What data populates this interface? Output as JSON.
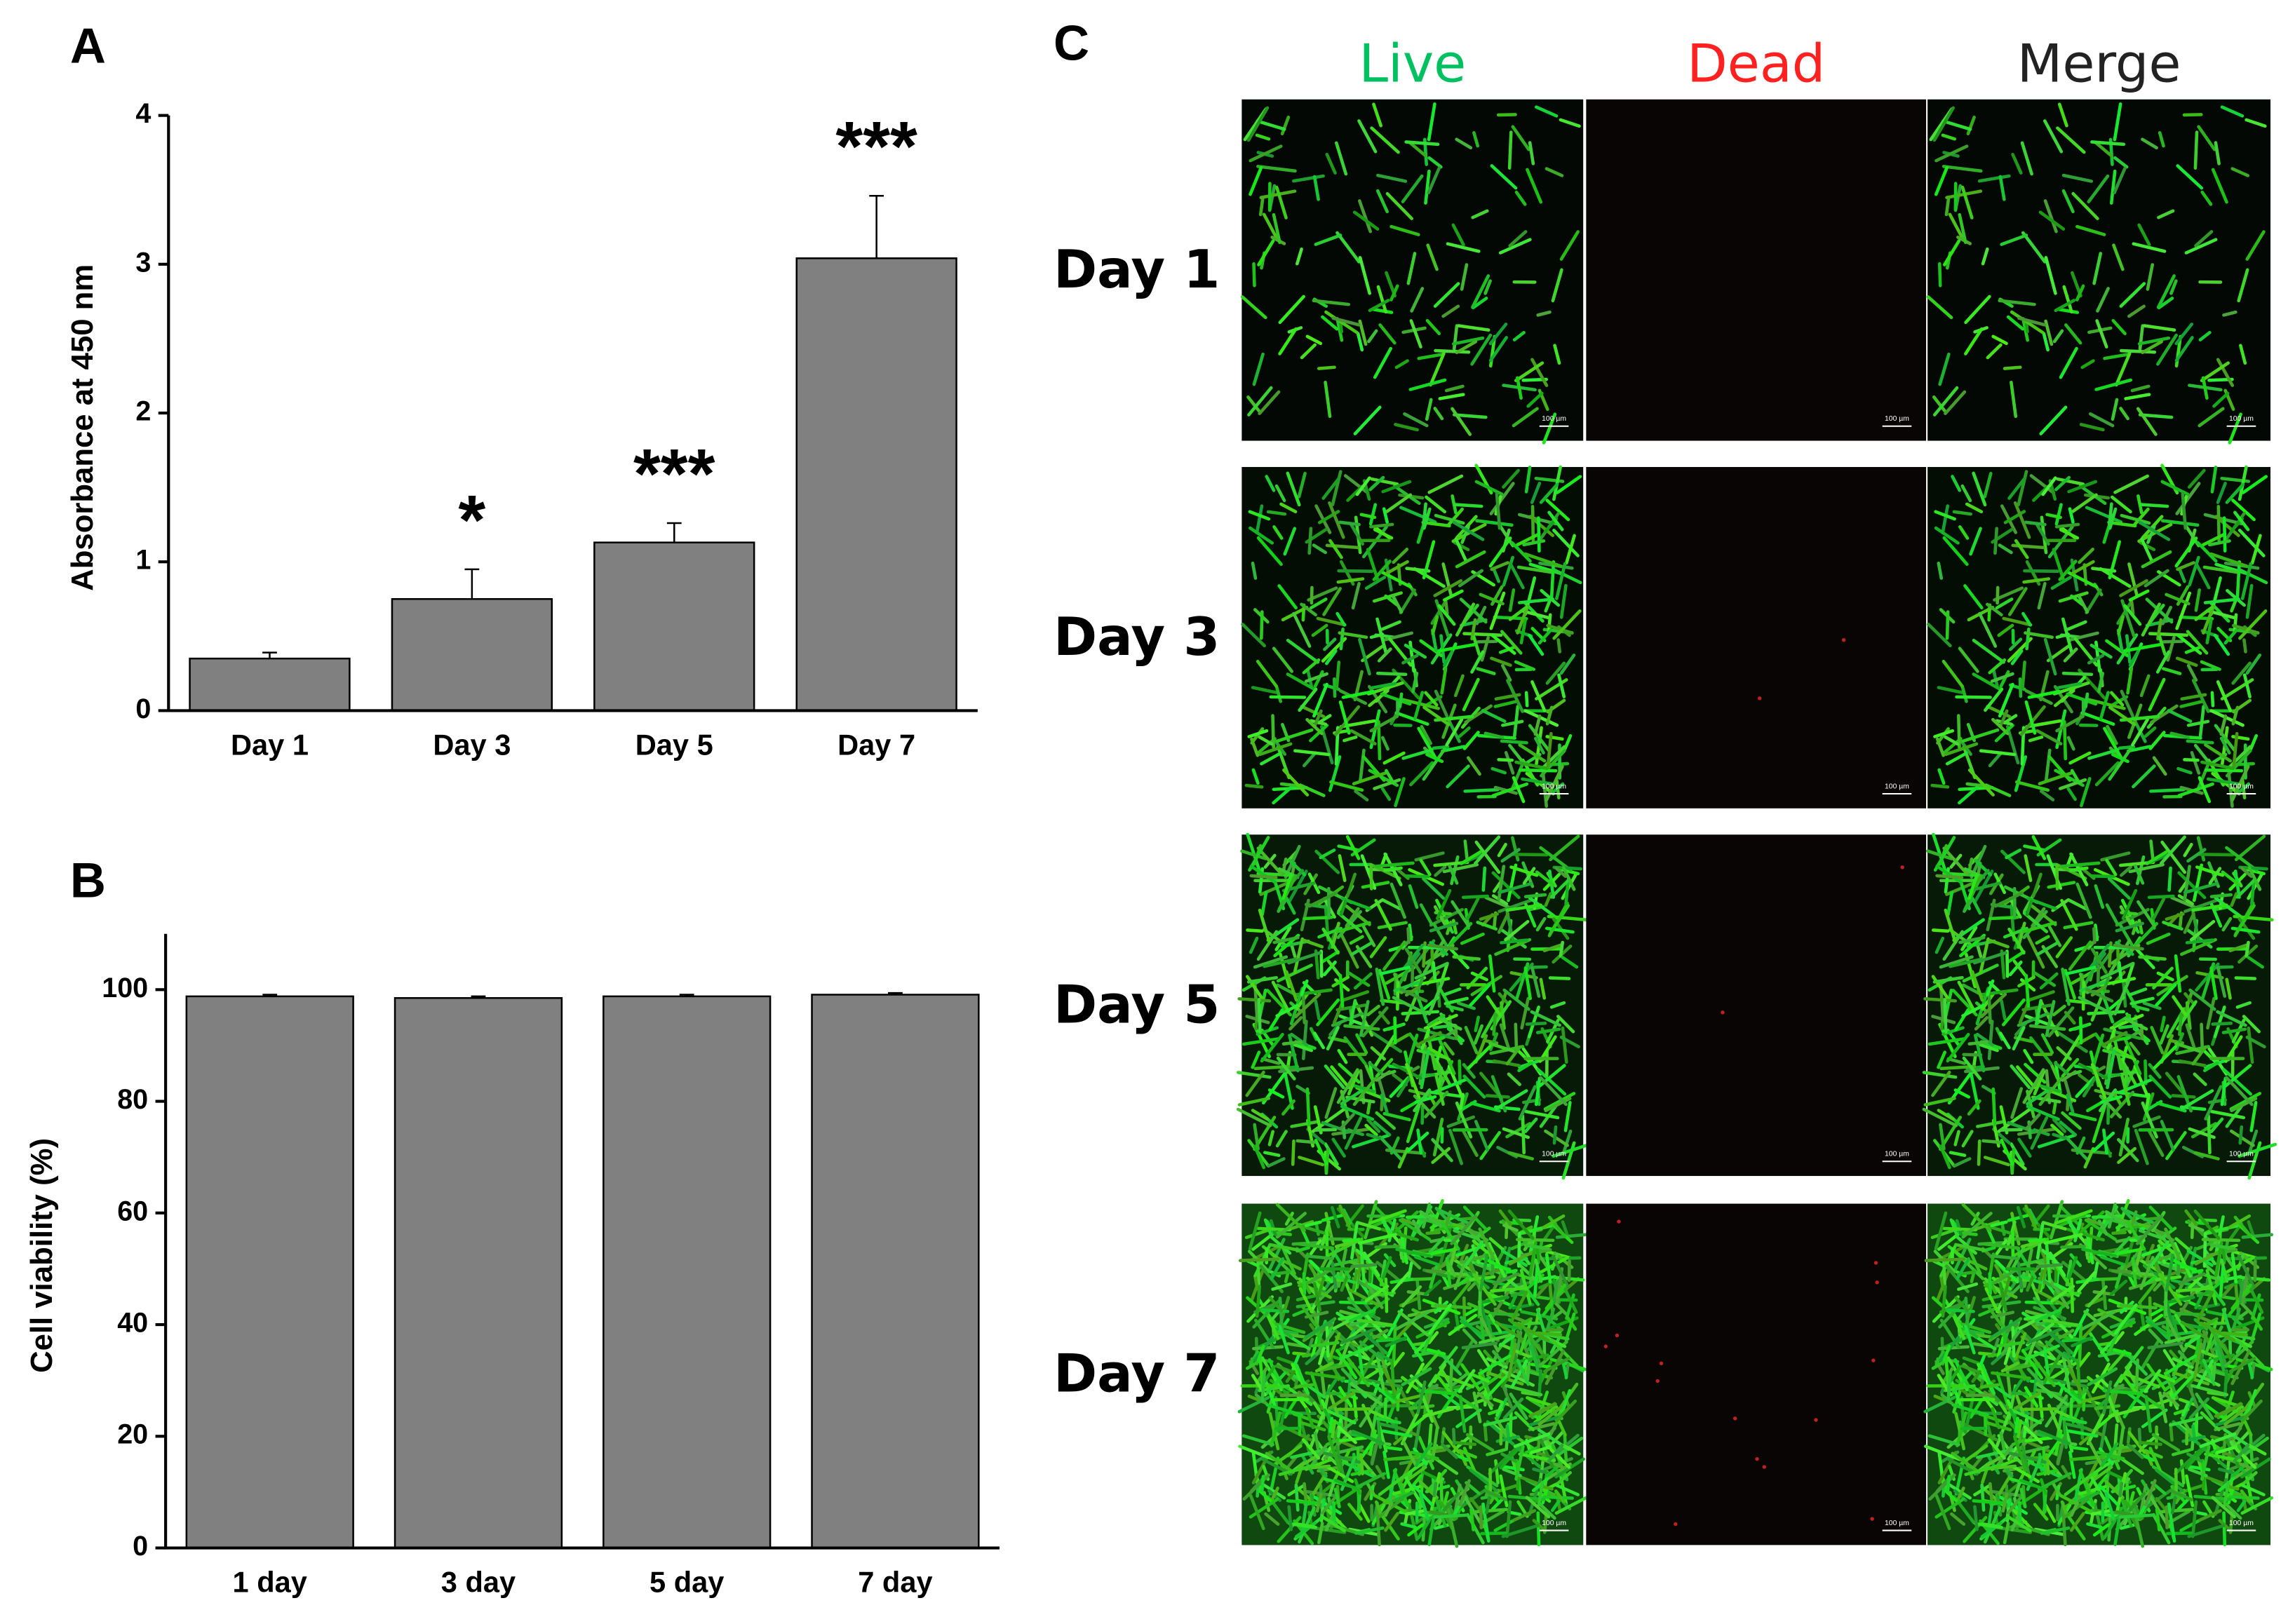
{
  "panel_labels": [
    "A",
    "B",
    "C"
  ],
  "chart_data": [
    {
      "type": "bar",
      "ylabel": "Absorbance at 450 nm",
      "categories": [
        "Day 1",
        "Day 3",
        "Day 5",
        "Day 7"
      ],
      "values": [
        0.35,
        0.75,
        1.13,
        3.04
      ],
      "errors": [
        0.04,
        0.2,
        0.13,
        0.42
      ],
      "annotations": [
        null,
        "*",
        "***",
        "***"
      ],
      "color": "#808080",
      "ylim": [
        0,
        4
      ],
      "yticks": [
        0,
        1,
        2,
        3,
        4
      ]
    },
    {
      "type": "bar",
      "ylabel": "Cell viability (%)",
      "categories": [
        "1 day",
        "3 day",
        "5 day",
        "7 day"
      ],
      "values": [
        98.8,
        98.5,
        98.8,
        99.1
      ],
      "errors": [
        0.3,
        0.3,
        0.3,
        0.3
      ],
      "color": "#808080",
      "ylim": [
        0,
        110
      ],
      "yticks": [
        0,
        20,
        40,
        60,
        80,
        100
      ]
    }
  ],
  "micrographs": {
    "columns": [
      {
        "label": "Live",
        "color": "#00c060"
      },
      {
        "label": "Dead",
        "color": "#ff2020"
      },
      {
        "label": "Merge",
        "color": "#222222"
      }
    ],
    "rows": [
      "Day 1",
      "Day 3",
      "Day 5",
      "Day 7"
    ],
    "scale_bar": "100 µm"
  }
}
